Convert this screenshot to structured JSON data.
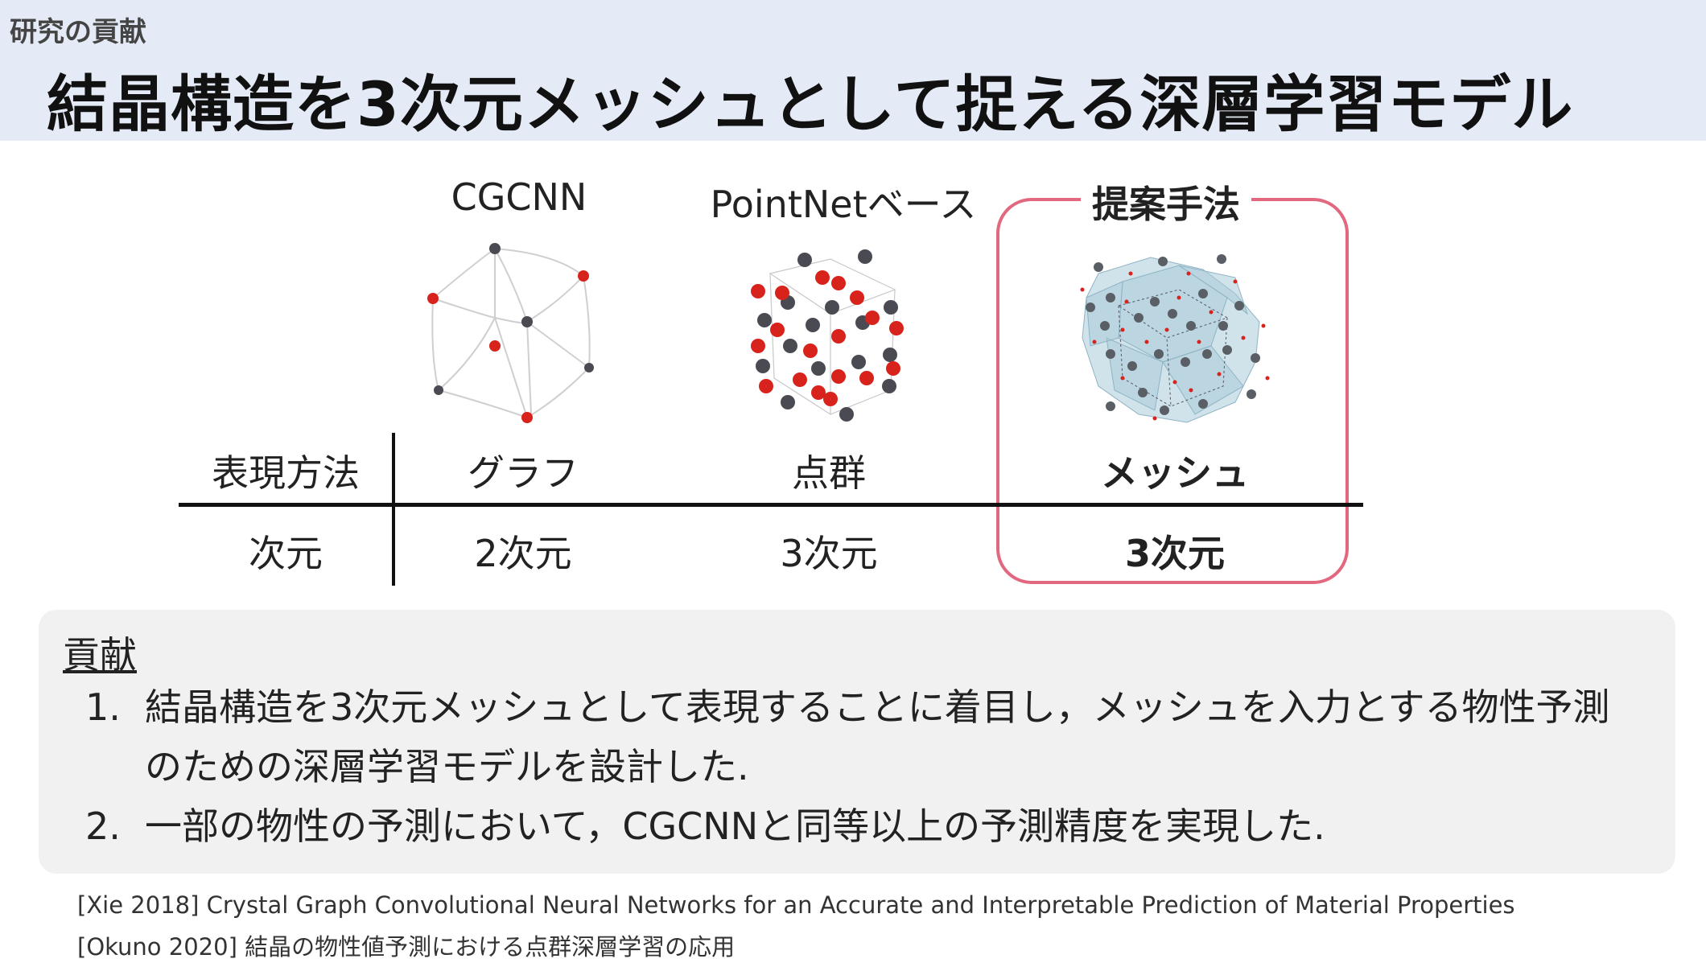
{
  "header": {
    "section": "研究の貢献",
    "title": "結晶構造を3次元メッシュとして捉える深層学習モデル"
  },
  "methods": {
    "cgcnn": "CGCNN",
    "pointnet": "PointNetベース",
    "proposed": "提案手法"
  },
  "table": {
    "row1_label": "表現方法",
    "row1_cgcnn": "グラフ",
    "row1_pointnet": "点群",
    "row1_proposed": "メッシュ",
    "row2_label": "次元",
    "row2_cgcnn": "2次元",
    "row2_pointnet": "3次元",
    "row2_proposed": "3次元"
  },
  "contribution": {
    "heading": "貢献",
    "items": [
      {
        "num": "1.",
        "line1": "結晶構造を3次元メッシュとして表現することに着目し，メッシュを入力とする物性予測",
        "line2": "のための深層学習モデルを設計した."
      },
      {
        "num": "2.",
        "line1": "一部の物性の予測において，CGCNNと同等以上の予測精度を実現した."
      }
    ]
  },
  "references": [
    "[Xie 2018] Crystal Graph Convolutional Neural Networks for an Accurate and Interpretable Prediction of Material Properties",
    "[Okuno 2020] 結晶の物性値予測における点群深層学習の応用"
  ],
  "colors": {
    "header_bg": "#e4ebf6",
    "highlight": "#e26880",
    "atom_red": "#d8231c",
    "atom_gray": "#4a4a52",
    "mesh": "#a9cad8"
  }
}
